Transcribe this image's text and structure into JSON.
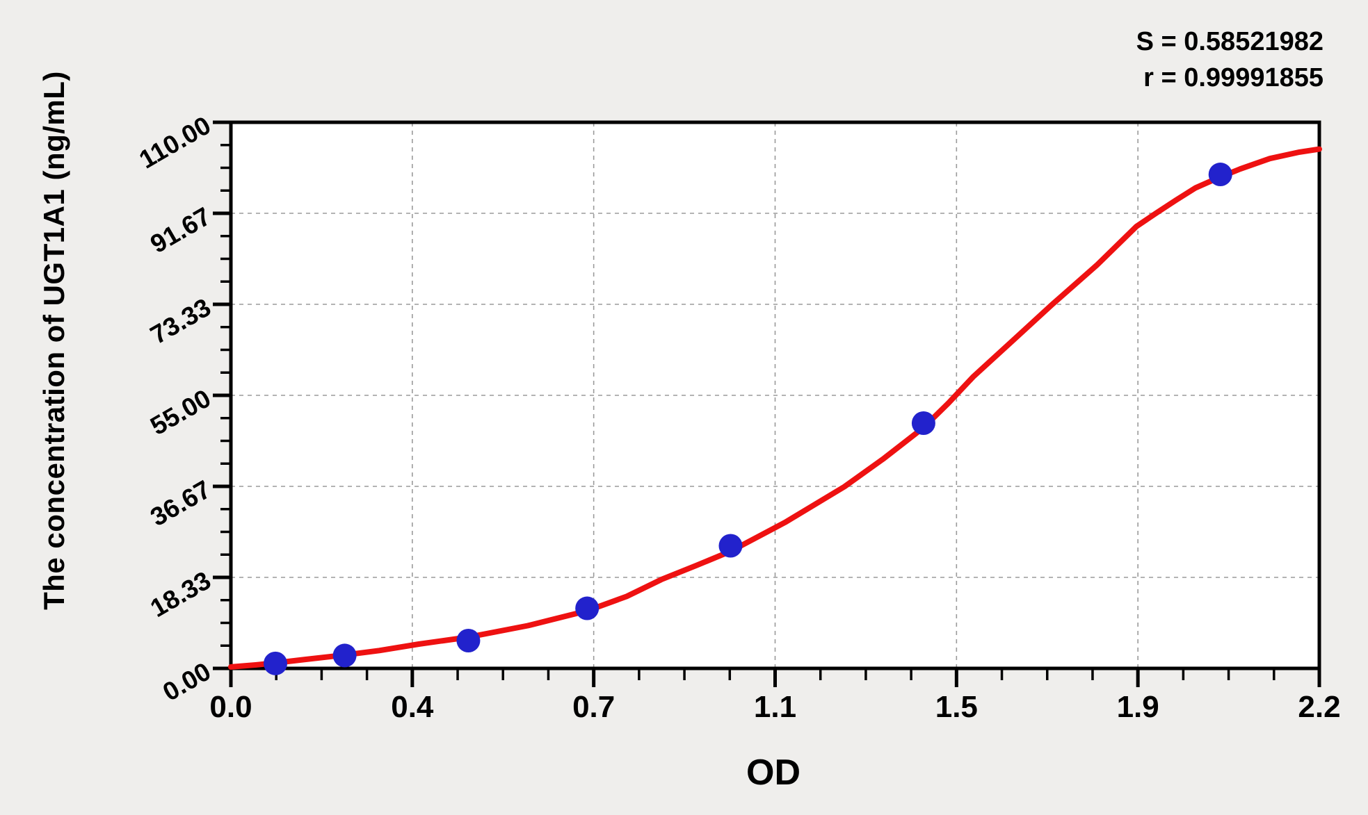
{
  "page": {
    "background_color": "#efeeec"
  },
  "stats": {
    "s_line": "S = 0.58521982",
    "r_line": "r = 0.99991855"
  },
  "chart_data": {
    "type": "scatter",
    "title": "",
    "xlabel": "OD",
    "ylabel": "The concentration of UGT1A1 (ng/mL)",
    "xlim": [
      0,
      2.2
    ],
    "ylim": [
      0,
      110
    ],
    "x_tick_labels": [
      "0.0",
      "0.4",
      "0.7",
      "1.1",
      "1.5",
      "1.9",
      "2.2"
    ],
    "y_tick_labels": [
      "0.00",
      "18.33",
      "36.67",
      "55.00",
      "73.33",
      "91.67",
      "110.00"
    ],
    "minor_ticks_per_major": 4,
    "grid": true,
    "legend_position": "none",
    "annotations": {
      "s": "S = 0.58521982",
      "r": "r = 0.99991855"
    },
    "points": [
      [
        0.09,
        1.0
      ],
      [
        0.23,
        2.6
      ],
      [
        0.48,
        5.6
      ],
      [
        0.72,
        12.1
      ],
      [
        1.01,
        24.7
      ],
      [
        1.4,
        49.4
      ],
      [
        2.0,
        99.5
      ]
    ],
    "curve": [
      [
        0.0,
        0.3
      ],
      [
        0.05,
        0.7
      ],
      [
        0.09,
        1.1
      ],
      [
        0.15,
        1.8
      ],
      [
        0.23,
        2.7
      ],
      [
        0.3,
        3.6
      ],
      [
        0.38,
        4.9
      ],
      [
        0.48,
        6.3
      ],
      [
        0.6,
        8.6
      ],
      [
        0.72,
        11.6
      ],
      [
        0.8,
        14.5
      ],
      [
        0.87,
        17.9
      ],
      [
        0.94,
        20.7
      ],
      [
        1.01,
        23.6
      ],
      [
        1.12,
        29.4
      ],
      [
        1.24,
        36.6
      ],
      [
        1.32,
        42.3
      ],
      [
        1.4,
        48.5
      ],
      [
        1.45,
        53.4
      ],
      [
        1.5,
        58.7
      ],
      [
        1.58,
        66.0
      ],
      [
        1.66,
        73.3
      ],
      [
        1.75,
        81.2
      ],
      [
        1.83,
        89.0
      ],
      [
        1.87,
        91.7
      ],
      [
        1.91,
        94.3
      ],
      [
        1.95,
        96.8
      ],
      [
        2.0,
        99.0
      ],
      [
        2.04,
        100.6
      ],
      [
        2.1,
        102.7
      ],
      [
        2.16,
        104.0
      ],
      [
        2.2,
        104.6
      ]
    ],
    "colors": {
      "curve": "#ee1111",
      "points": "#2222cc",
      "grid": "#9a9a9a",
      "axis": "#000000",
      "plot_background": "#ffffff"
    }
  }
}
